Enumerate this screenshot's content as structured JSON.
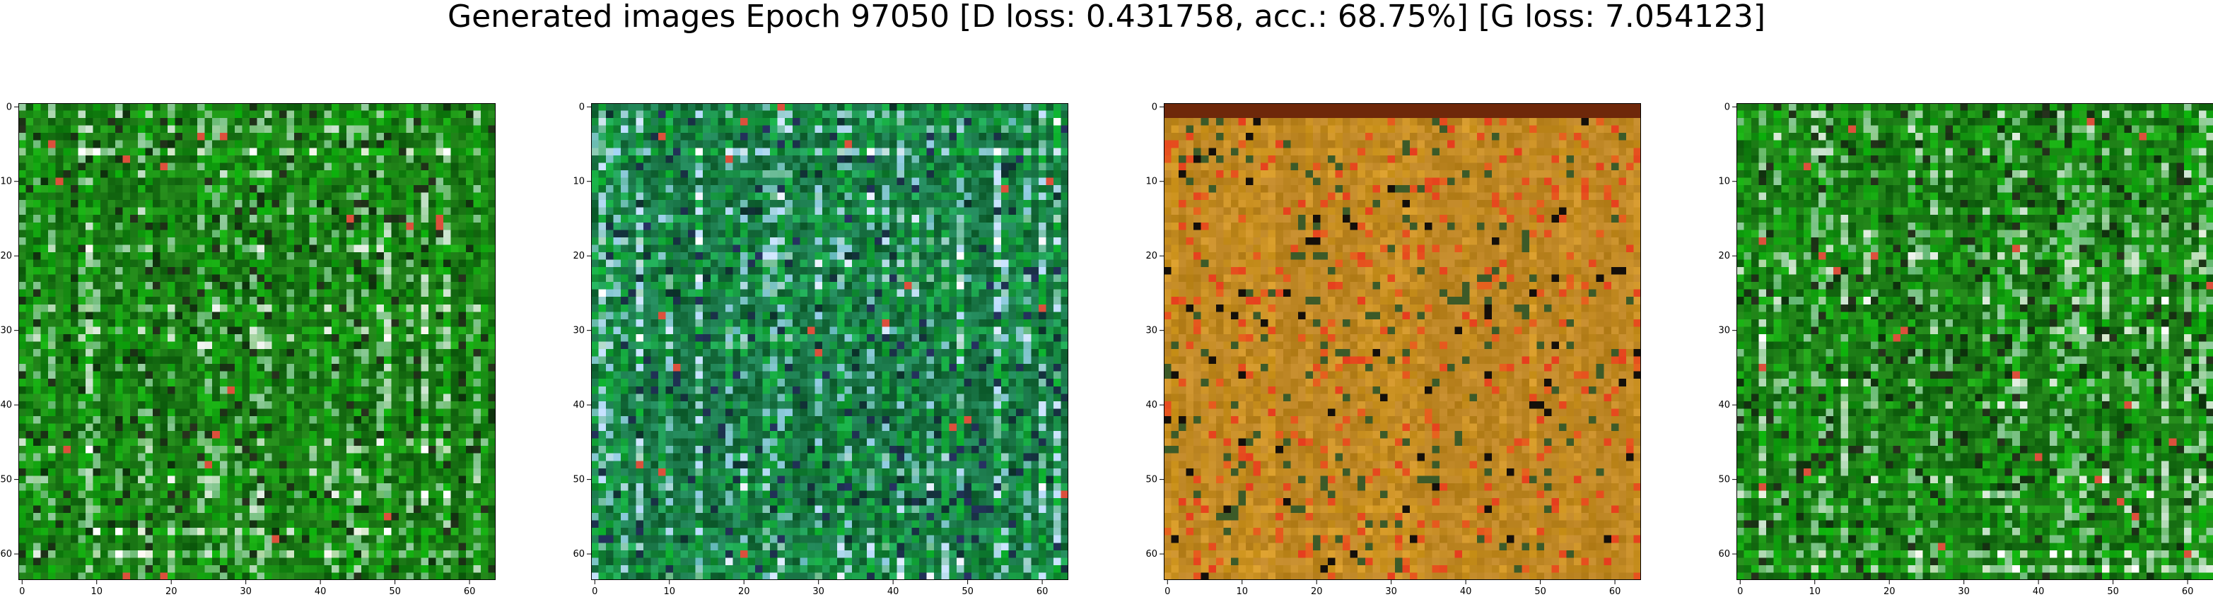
{
  "figure": {
    "suptitle": "Generated images Epoch 97050 [D loss: 0.431758, acc.: 68.75%] [G loss: 7.054123]"
  },
  "axes": {
    "x_ticks": [
      0,
      10,
      20,
      30,
      40,
      50,
      60
    ],
    "y_ticks": [
      0,
      10,
      20,
      30,
      40,
      50,
      60
    ],
    "image_size": 64
  },
  "panels": [
    {
      "name": "generated-image-1",
      "palette": "green",
      "base": "#1f8a2a"
    },
    {
      "name": "generated-image-2",
      "palette": "teal-green",
      "base": "#228a45"
    },
    {
      "name": "generated-image-3",
      "palette": "orange",
      "base": "#c98f1f"
    },
    {
      "name": "generated-image-4",
      "palette": "green",
      "base": "#208f22"
    }
  ]
}
